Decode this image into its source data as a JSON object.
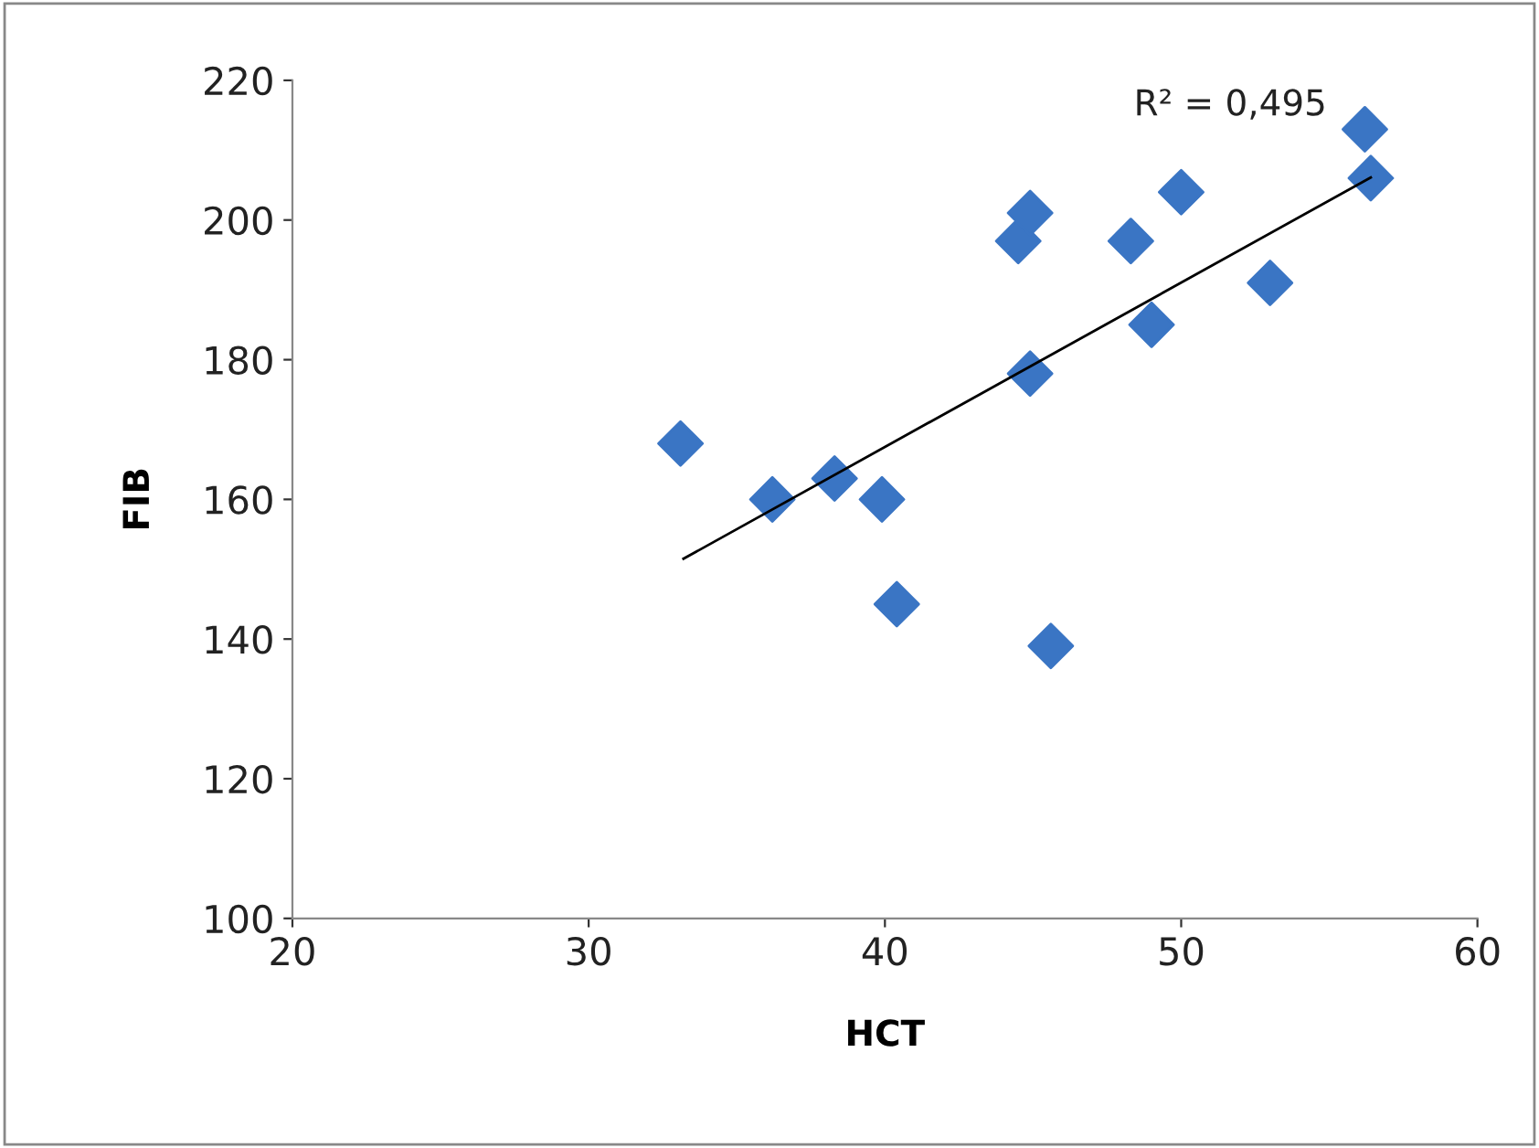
{
  "chart_data": {
    "type": "scatter",
    "xlabel": "HCT",
    "ylabel": "FIB",
    "xlim": [
      20,
      60
    ],
    "ylim": [
      100,
      220
    ],
    "xticks": [
      20,
      30,
      40,
      50,
      60
    ],
    "yticks": [
      100,
      120,
      140,
      160,
      180,
      200,
      220
    ],
    "grid": false,
    "legend": false,
    "marker": "diamond",
    "series": [
      {
        "color": "#3a75c4",
        "x": [
          33.1,
          36.2,
          38.3,
          39.9,
          40.4,
          44.5,
          44.9,
          44.9,
          45.6,
          48.3,
          49.0,
          50.0,
          53.0,
          56.2,
          56.4
        ],
        "values": [
          168,
          160,
          163,
          160,
          145,
          197,
          201,
          178,
          139,
          197,
          185,
          204,
          191,
          213,
          206
        ]
      },
      {
        "type": "line",
        "color": "#000000",
        "x": [
          33.2,
          56.4
        ],
        "values": [
          151.5,
          206.1
        ],
        "marker": "none",
        "line_style": "solid"
      }
    ],
    "annotations": [
      "R² = 0,495"
    ]
  }
}
